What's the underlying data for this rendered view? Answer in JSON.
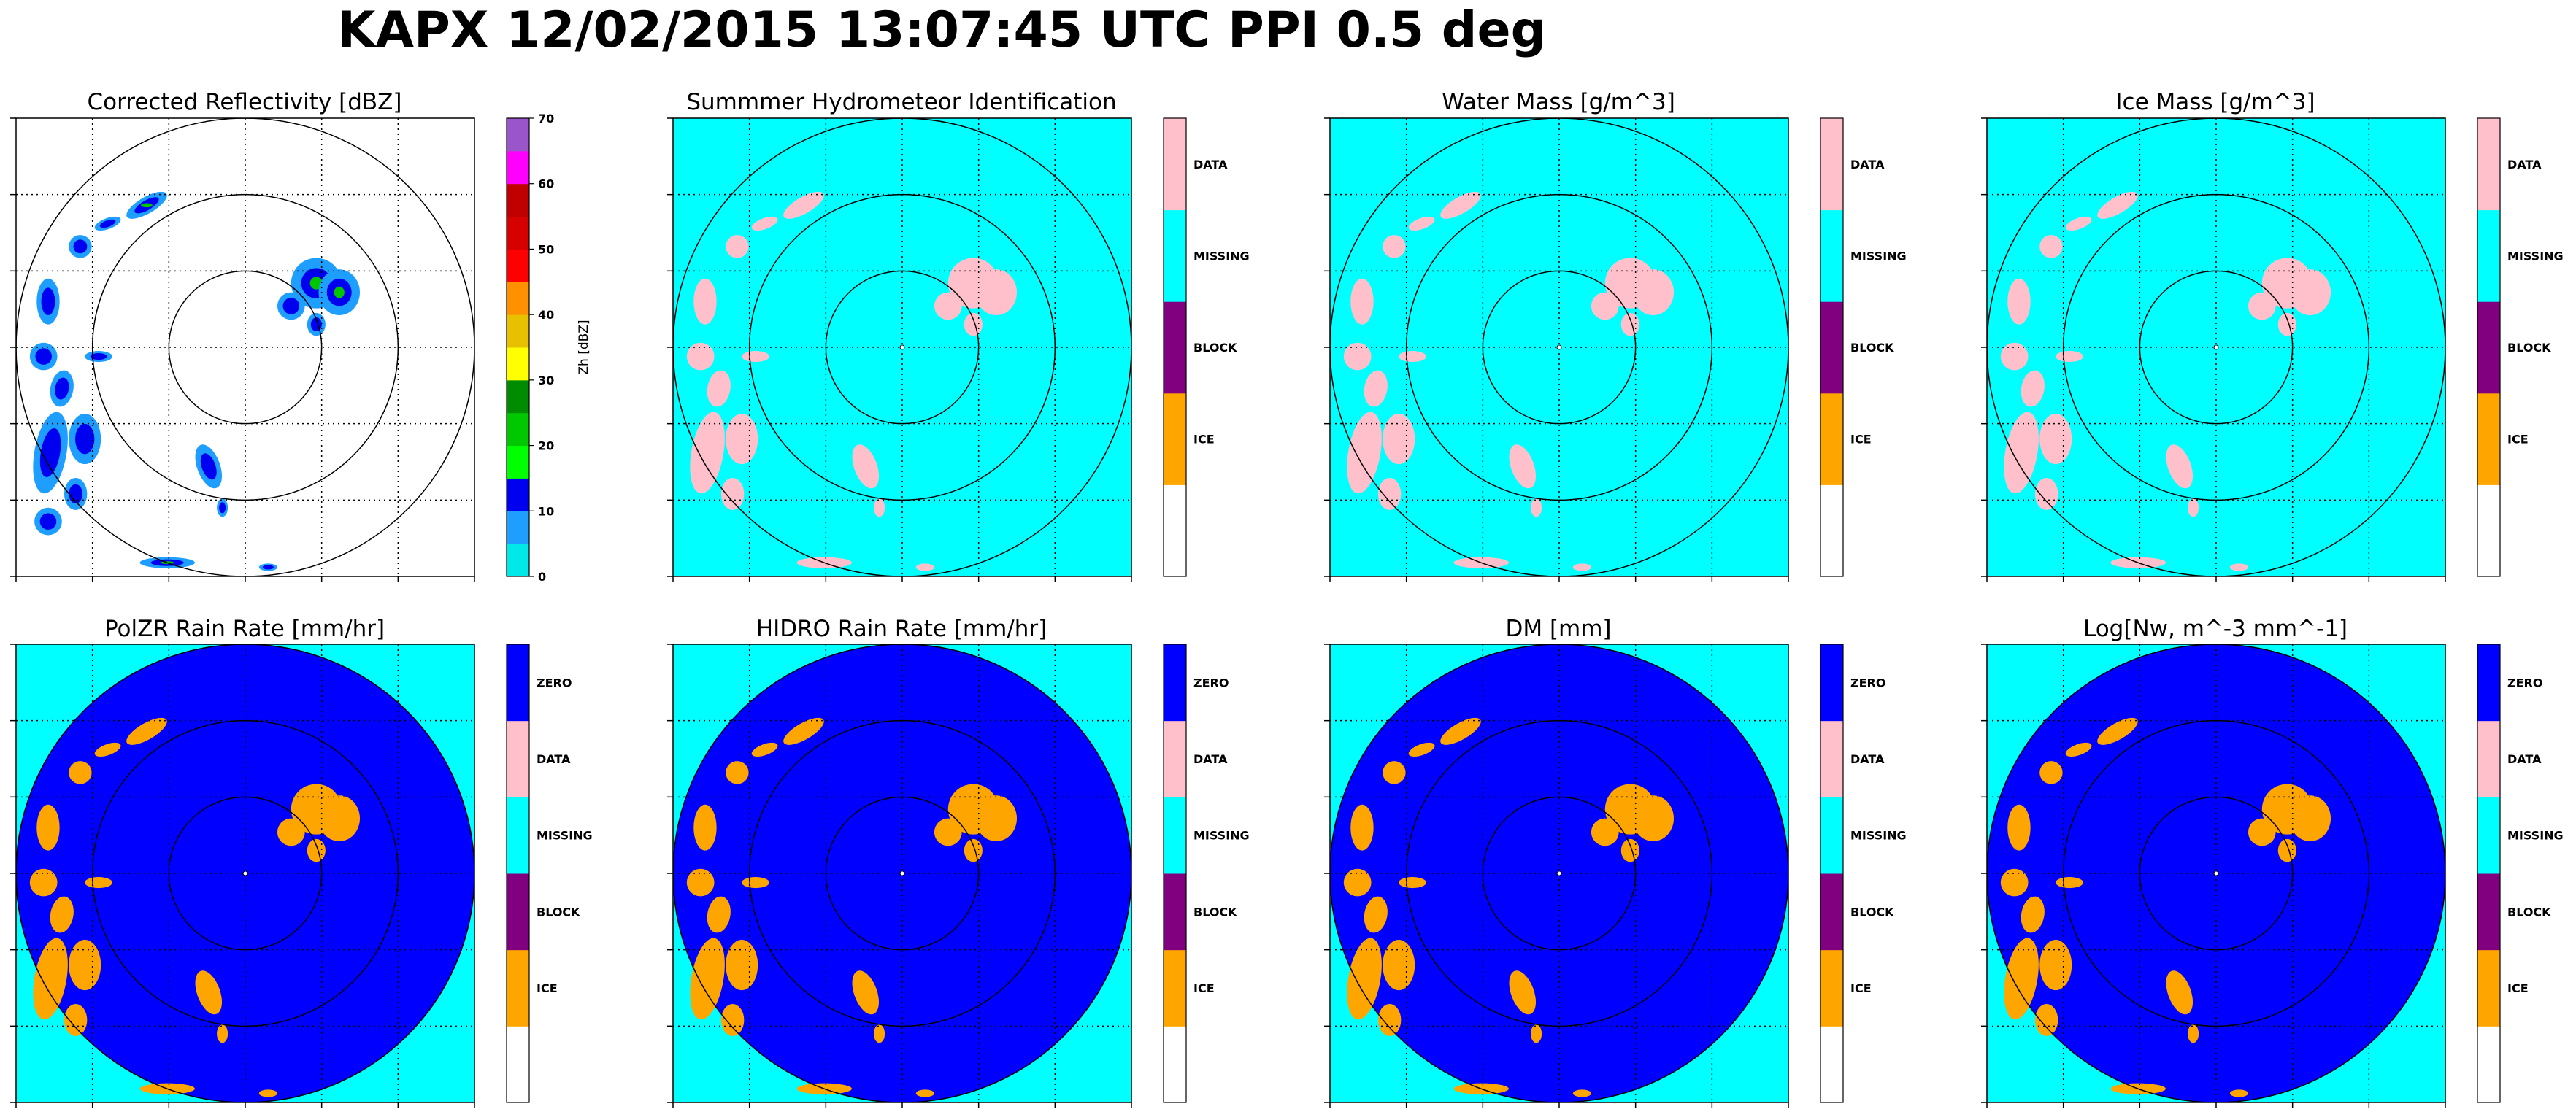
{
  "title": "KAPX 12/02/2015 13:07:45 UTC PPI 0.5 deg",
  "colors": {
    "field_background": "#00ffff",
    "rain_zero": "#0000ff",
    "echo_pink": "#ffc0cb",
    "echo_orange": "#ffa500",
    "range_ring": "#000000",
    "grid": "#000000"
  },
  "hid_colorbar": {
    "categories": [
      {
        "label": "",
        "color": "#ffffff"
      },
      {
        "label": "ICE",
        "color": "#ffa500"
      },
      {
        "label": "BLOCK",
        "color": "#800080"
      },
      {
        "label": "MISSING",
        "color": "#00ffff"
      },
      {
        "label": "DATA",
        "color": "#ffc0cb"
      }
    ]
  },
  "rain_colorbar": {
    "categories": [
      {
        "label": "",
        "color": "#ffffff"
      },
      {
        "label": "ICE",
        "color": "#ffa500"
      },
      {
        "label": "BLOCK",
        "color": "#800080"
      },
      {
        "label": "MISSING",
        "color": "#00ffff"
      },
      {
        "label": "DATA",
        "color": "#ffc0cb"
      },
      {
        "label": "ZERO",
        "color": "#0000ff"
      }
    ]
  },
  "chart_data": [
    {
      "type": "heatmap",
      "title": "Corrected Reflectivity [dBZ]",
      "style": "reflectivity",
      "colorbar": {
        "label": "Zh [dBZ]",
        "range": [
          0,
          70
        ],
        "ticks": [
          "0",
          "10",
          "20",
          "30",
          "40",
          "50",
          "60",
          "70"
        ],
        "colors": [
          "#00e8e8",
          "#1e9fff",
          "#0000f0",
          "#00ff00",
          "#00c800",
          "#008c00",
          "#ffff00",
          "#e7c000",
          "#ff9000",
          "#ff0000",
          "#d60000",
          "#c00000",
          "#ff00ff",
          "#9955c9"
        ]
      },
      "range_rings": 3,
      "grid": "on"
    },
    {
      "type": "heatmap",
      "title": "Summmer Hydrometeor Identification",
      "style": "hid",
      "colorbar": "hid",
      "range_rings": 3,
      "grid": "on"
    },
    {
      "type": "heatmap",
      "title": "Water Mass [g/m^3]",
      "style": "hid",
      "colorbar": "hid",
      "range_rings": 3,
      "grid": "on"
    },
    {
      "type": "heatmap",
      "title": "Ice Mass [g/m^3]",
      "style": "hid",
      "colorbar": "hid",
      "range_rings": 3,
      "grid": "on"
    },
    {
      "type": "heatmap",
      "title": "PolZR Rain Rate [mm/hr]",
      "style": "rain",
      "colorbar": "rain",
      "range_rings": 3,
      "grid": "on"
    },
    {
      "type": "heatmap",
      "title": "HIDRO Rain Rate [mm/hr]",
      "style": "rain",
      "colorbar": "rain",
      "range_rings": 3,
      "grid": "on"
    },
    {
      "type": "heatmap",
      "title": "DM [mm]",
      "style": "rain",
      "colorbar": "rain",
      "range_rings": 3,
      "grid": "on"
    },
    {
      "type": "heatmap",
      "title": "Log[Nw, m^-3 mm^-1]",
      "style": "rain",
      "colorbar": "rain",
      "range_rings": 3,
      "grid": "on"
    }
  ]
}
